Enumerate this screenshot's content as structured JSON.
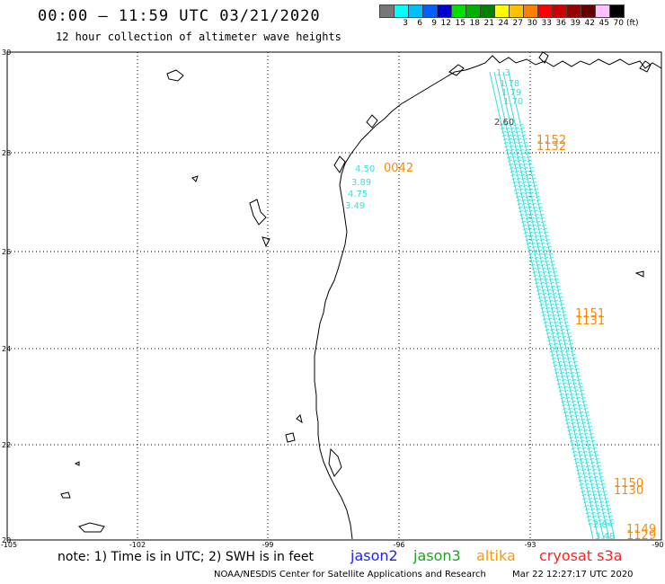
{
  "header": {
    "title": "00:00 – 11:59 UTC 03/21/2020",
    "subtitle": "12 hour collection of altimeter wave heights"
  },
  "legend_scale": {
    "unit": "(ft)",
    "swatches": [
      {
        "label": "",
        "color": "#777777"
      },
      {
        "label": "3",
        "color": "#00ffff"
      },
      {
        "label": "6",
        "color": "#00bfff"
      },
      {
        "label": "9",
        "color": "#0060ff"
      },
      {
        "label": "12",
        "color": "#0000cc"
      },
      {
        "label": "15",
        "color": "#00e000"
      },
      {
        "label": "18",
        "color": "#00b000"
      },
      {
        "label": "21",
        "color": "#008000"
      },
      {
        "label": "24",
        "color": "#ffff00"
      },
      {
        "label": "27",
        "color": "#ffc000"
      },
      {
        "label": "30",
        "color": "#ff8000"
      },
      {
        "label": "33",
        "color": "#ff0000"
      },
      {
        "label": "36",
        "color": "#cc0000"
      },
      {
        "label": "39",
        "color": "#990000"
      },
      {
        "label": "42",
        "color": "#660000"
      },
      {
        "label": "45",
        "color": "#ffc0ff"
      },
      {
        "label": "70",
        "color": "#000000"
      }
    ]
  },
  "map": {
    "lat_labels": [
      "30",
      "28",
      "26",
      "24",
      "22",
      "20"
    ],
    "lon_labels": [
      "-105",
      "-102",
      "-99",
      "-96",
      "-93",
      "-90"
    ],
    "coast_color": "#000000",
    "track_color": "#33e0e0",
    "time_color": "#ff8800"
  },
  "swh_values": {
    "nearshore": [
      "4.50",
      "3.89",
      "4.75",
      "3.49"
    ],
    "track_top": [
      "1.3",
      "1.78",
      "1.79",
      "1.70",
      "2.60"
    ],
    "track_bottom": [
      "2.84",
      "3.48"
    ]
  },
  "pass_times": {
    "near_coast": "0042",
    "track_labels": [
      {
        "a": "1152",
        "b": "1132"
      },
      {
        "a": "1151",
        "b": "1131"
      },
      {
        "a": "1150",
        "b": "1130"
      },
      {
        "a": "1149",
        "b": "1129"
      }
    ]
  },
  "note": {
    "text": "note: 1) Time is in UTC; 2) SWH is in feet"
  },
  "satellites": [
    {
      "name": "jason2",
      "color": "#2020ff"
    },
    {
      "name": "jason3",
      "color": "#20a020"
    },
    {
      "name": "altika",
      "color": "#ff9900"
    },
    {
      "name": "cryosat s3a",
      "color": "#ff2020"
    }
  ],
  "footer": {
    "center": "NOAA/NESDIS Center for Satellite Applications and Research",
    "timestamp": "Mar 22 12:27:17 UTC 2020"
  }
}
